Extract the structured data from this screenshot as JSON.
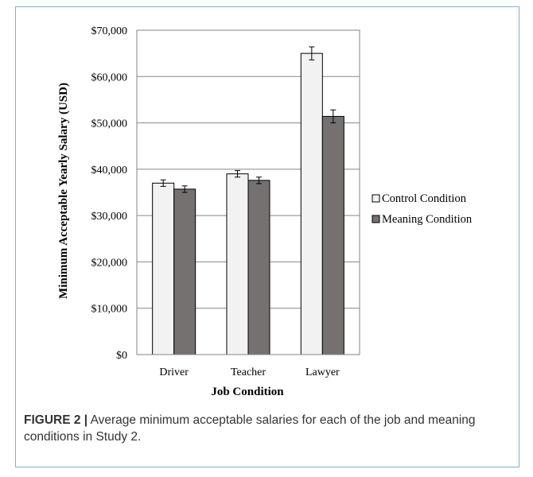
{
  "chart_data": {
    "type": "bar",
    "title": "",
    "xlabel": "Job Condition",
    "ylabel": "Minimum Acceptable Yearly Salary (USD)",
    "categories": [
      "Driver",
      "Teacher",
      "Lawyer"
    ],
    "ylim": [
      0,
      70000
    ],
    "ytick_values": [
      0,
      10000,
      20000,
      30000,
      40000,
      50000,
      60000,
      70000
    ],
    "ytick_labels": [
      "$0",
      "$10,000",
      "$20,000",
      "$30,000",
      "$40,000",
      "$50,000",
      "$60,000",
      "$70,000"
    ],
    "grid": true,
    "legend_position": "right",
    "series": [
      {
        "name": "Control Condition",
        "values": [
          37000,
          39000,
          65000
        ],
        "errors": [
          700,
          700,
          1400
        ],
        "color": "#f2f2f2"
      },
      {
        "name": "Meaning Condition",
        "values": [
          35700,
          37600,
          51400
        ],
        "errors": [
          700,
          700,
          1400
        ],
        "color": "#767171"
      }
    ]
  },
  "caption": {
    "label": "FIGURE 2 |",
    "text": " Average minimum acceptable salaries for each of the job and meaning conditions in Study 2."
  }
}
